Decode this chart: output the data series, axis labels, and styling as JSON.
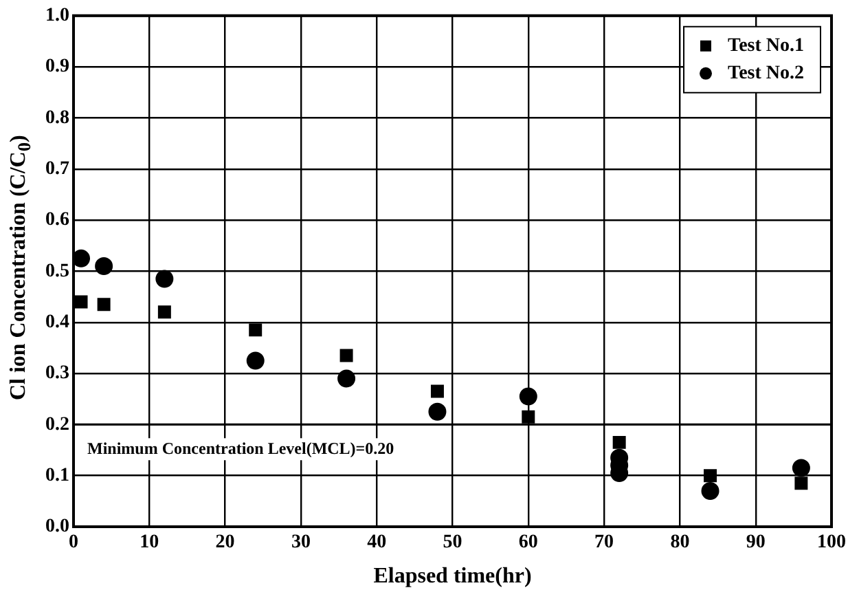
{
  "chart_data": {
    "type": "scatter",
    "xlabel": "Elapsed time(hr)",
    "ylabel": "Cl ion Concentration (C/C$_{0}$)",
    "xlim": [
      0,
      100
    ],
    "xticks": [
      0,
      10,
      20,
      30,
      40,
      50,
      60,
      70,
      80,
      90,
      100
    ],
    "ylim": [
      0,
      1
    ],
    "yticks": [
      {
        "value": 0,
        "label": "0.0"
      },
      0.1,
      0.2,
      0.3,
      0.4,
      0.5,
      0.6,
      0.7,
      0.8,
      0.9,
      {
        "value": 1,
        "label": "1.0"
      }
    ],
    "grid": true,
    "legend": "top right",
    "series": [
      {
        "name": "Test No.1",
        "color": "#000000",
        "marker": "square",
        "x": [
          1,
          4,
          12,
          24,
          36,
          48,
          60,
          72,
          84,
          96
        ],
        "values": [
          0.44,
          0.435,
          0.42,
          0.385,
          0.335,
          0.265,
          0.215,
          0.165,
          0.1,
          0.085
        ]
      },
      {
        "name": "Test No.2",
        "color": "#000000",
        "marker": "circle",
        "x": [
          1,
          4,
          12,
          24,
          36,
          48,
          60,
          72,
          72,
          72,
          84,
          96
        ],
        "values": [
          0.525,
          0.51,
          0.485,
          0.325,
          0.29,
          0.225,
          0.255,
          0.135,
          0.12,
          0.105,
          0.07,
          0.115
        ]
      }
    ],
    "ref_lines": [
      {
        "axis": "y",
        "value": 0.2,
        "label": "Minimum Concentration Level(MCL)=0.20",
        "color": "#000000"
      }
    ]
  }
}
